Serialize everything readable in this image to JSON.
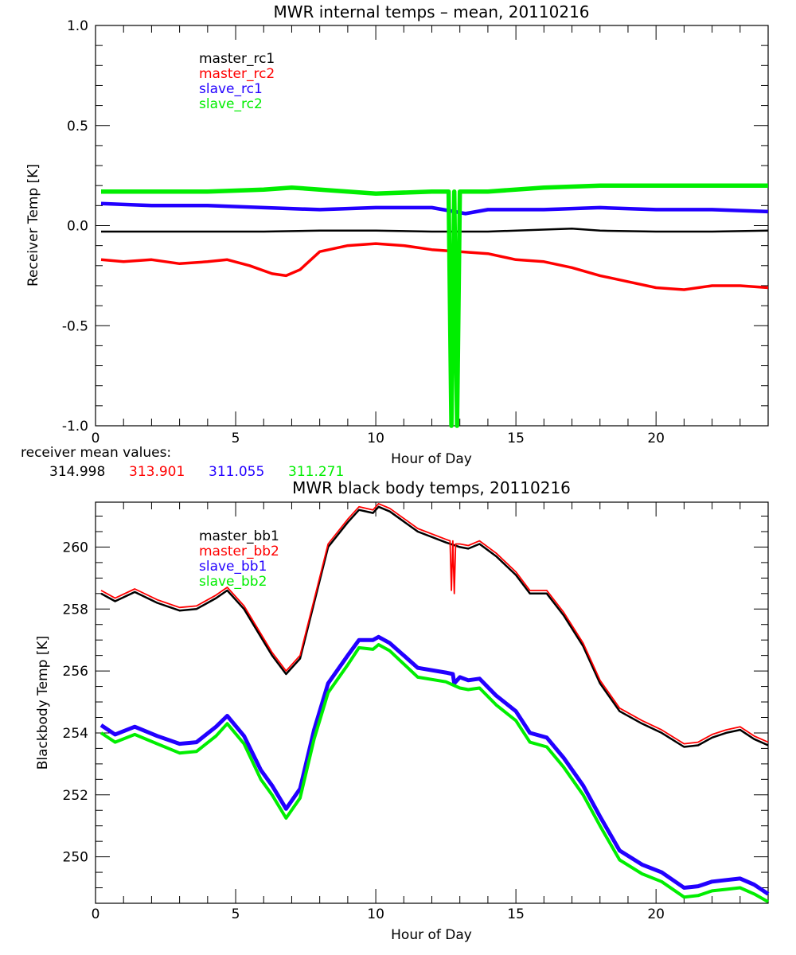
{
  "chart_data": [
    {
      "type": "line",
      "title": "MWR internal temps – mean, 20110216",
      "xlabel": "Hour of Day",
      "ylabel": "Receiver Temp [K]",
      "xlim": [
        0,
        24
      ],
      "ylim": [
        -1.0,
        1.0
      ],
      "xticks": [
        "0",
        "5",
        "10",
        "15",
        "20"
      ],
      "yticks": [
        "1.0",
        "0.5",
        "0.0",
        "-0.5",
        "-1.0"
      ],
      "legend_position": "top-left",
      "series": [
        {
          "name": "master_rc1",
          "color": "#000000",
          "x": [
            0.2,
            2,
            4,
            6,
            8,
            10,
            12,
            14,
            16,
            17,
            18,
            20,
            22,
            24
          ],
          "y": [
            -0.03,
            -0.03,
            -0.03,
            -0.03,
            -0.025,
            -0.025,
            -0.03,
            -0.03,
            -0.02,
            -0.015,
            -0.025,
            -0.03,
            -0.03,
            -0.025
          ]
        },
        {
          "name": "master_rc2",
          "color": "#ff0000",
          "x": [
            0.2,
            1,
            2,
            3,
            4,
            4.7,
            5.5,
            6.3,
            6.8,
            7.3,
            8,
            9,
            10,
            11,
            12,
            13,
            14,
            15,
            16,
            17,
            18,
            19,
            20,
            21,
            22,
            23,
            24
          ],
          "y": [
            -0.17,
            -0.18,
            -0.17,
            -0.19,
            -0.18,
            -0.17,
            -0.2,
            -0.24,
            -0.25,
            -0.22,
            -0.13,
            -0.1,
            -0.09,
            -0.1,
            -0.12,
            -0.13,
            -0.14,
            -0.17,
            -0.18,
            -0.21,
            -0.25,
            -0.28,
            -0.31,
            -0.32,
            -0.3,
            -0.3,
            -0.31
          ]
        },
        {
          "name": "slave_rc1",
          "color": "#2200ff",
          "x": [
            0.2,
            2,
            4,
            6,
            8,
            10,
            12,
            13.2,
            14,
            16,
            18,
            20,
            22,
            24
          ],
          "y": [
            0.11,
            0.1,
            0.1,
            0.09,
            0.08,
            0.09,
            0.09,
            0.06,
            0.08,
            0.08,
            0.09,
            0.08,
            0.08,
            0.07
          ]
        },
        {
          "name": "slave_rc2",
          "color": "#00ee00",
          "x": [
            0.2,
            2,
            4,
            6,
            7,
            8,
            10,
            12,
            12.6,
            12.7,
            12.8,
            12.9,
            13,
            14,
            16,
            18,
            20,
            22,
            24
          ],
          "y": [
            0.17,
            0.17,
            0.17,
            0.18,
            0.19,
            0.18,
            0.16,
            0.17,
            0.17,
            -1.0,
            0.17,
            -1.0,
            0.17,
            0.17,
            0.19,
            0.2,
            0.2,
            0.2,
            0.2
          ]
        }
      ]
    },
    {
      "type": "line",
      "title": "MWR black body temps, 20110216",
      "xlabel": "Hour of Day",
      "ylabel": "Blackbody Temp [K]",
      "xlim": [
        0,
        24
      ],
      "ylim": [
        248.5,
        261.45
      ],
      "xticks": [
        "0",
        "5",
        "10",
        "15",
        "20"
      ],
      "yticks": [
        "250",
        "252",
        "254",
        "256",
        "258",
        "260"
      ],
      "legend_position": "top-left",
      "series": [
        {
          "name": "master_bb1",
          "color": "#000000",
          "x": [
            0.2,
            0.7,
            1.4,
            2.2,
            3.0,
            3.6,
            4.3,
            4.7,
            5.3,
            5.9,
            6.3,
            6.8,
            7.3,
            7.8,
            8.3,
            9.0,
            9.4,
            9.9,
            10.1,
            10.5,
            11.5,
            12.5,
            13.0,
            13.3,
            13.7,
            14.3,
            15.0,
            15.5,
            16.1,
            16.7,
            17.4,
            18.0,
            18.7,
            19.5,
            20.2,
            21.0,
            21.5,
            22.0,
            22.5,
            23.0,
            23.5,
            24.0
          ],
          "y": [
            258.5,
            258.25,
            258.55,
            258.2,
            257.95,
            258.0,
            258.35,
            258.6,
            258.0,
            257.1,
            256.5,
            255.9,
            256.4,
            258.2,
            260.0,
            260.8,
            261.2,
            261.1,
            261.3,
            261.15,
            260.5,
            260.15,
            260.0,
            259.95,
            260.1,
            259.7,
            259.1,
            258.5,
            258.5,
            257.8,
            256.8,
            255.6,
            254.7,
            254.3,
            254.0,
            253.55,
            253.6,
            253.85,
            254.0,
            254.1,
            253.8,
            253.6
          ]
        },
        {
          "name": "master_bb2",
          "color": "#ff0000",
          "x": [
            0.2,
            0.7,
            1.4,
            2.2,
            3.0,
            3.6,
            4.3,
            4.7,
            5.3,
            5.9,
            6.3,
            6.8,
            7.3,
            7.8,
            8.3,
            9.0,
            9.4,
            9.9,
            10.1,
            10.5,
            11.5,
            12.5,
            12.65,
            12.7,
            12.75,
            12.8,
            12.85,
            13.0,
            13.3,
            13.7,
            14.3,
            15.0,
            15.5,
            16.1,
            16.7,
            17.4,
            18.0,
            18.7,
            19.5,
            20.2,
            21.0,
            21.5,
            22.0,
            22.5,
            23.0,
            23.5,
            24.0
          ],
          "y": [
            258.6,
            258.35,
            258.65,
            258.3,
            258.05,
            258.1,
            258.45,
            258.7,
            258.1,
            257.2,
            256.6,
            256.0,
            256.5,
            258.3,
            260.1,
            260.9,
            261.3,
            261.2,
            261.4,
            261.25,
            260.6,
            260.25,
            260.2,
            258.6,
            260.2,
            258.5,
            260.1,
            260.1,
            260.05,
            260.2,
            259.8,
            259.2,
            258.6,
            258.6,
            257.9,
            256.9,
            255.7,
            254.8,
            254.4,
            254.1,
            253.65,
            253.7,
            253.95,
            254.1,
            254.2,
            253.9,
            253.7
          ]
        },
        {
          "name": "slave_bb1",
          "color": "#2200ff",
          "x": [
            0.2,
            0.7,
            1.4,
            2.2,
            3.0,
            3.6,
            4.3,
            4.7,
            5.3,
            5.9,
            6.3,
            6.8,
            7.3,
            7.8,
            8.3,
            9.0,
            9.4,
            9.9,
            10.1,
            10.5,
            11.5,
            12.5,
            12.75,
            12.8,
            13.0,
            13.3,
            13.7,
            14.3,
            15.0,
            15.5,
            16.1,
            16.7,
            17.4,
            18.0,
            18.7,
            19.5,
            20.2,
            21.0,
            21.5,
            22.0,
            22.5,
            23.0,
            23.5,
            24.0
          ],
          "y": [
            254.25,
            253.95,
            254.2,
            253.9,
            253.65,
            253.7,
            254.2,
            254.55,
            253.9,
            252.8,
            252.3,
            251.55,
            252.2,
            254.1,
            255.6,
            256.5,
            257.0,
            257.0,
            257.1,
            256.9,
            256.1,
            255.95,
            255.9,
            255.6,
            255.8,
            255.7,
            255.75,
            255.2,
            254.7,
            254.0,
            253.85,
            253.2,
            252.3,
            251.3,
            250.2,
            249.75,
            249.5,
            249.0,
            249.05,
            249.2,
            249.25,
            249.3,
            249.1,
            248.8
          ]
        },
        {
          "name": "slave_bb2",
          "color": "#00ee00",
          "x": [
            0.2,
            0.7,
            1.4,
            2.2,
            3.0,
            3.6,
            4.3,
            4.7,
            5.3,
            5.9,
            6.3,
            6.8,
            7.3,
            7.8,
            8.3,
            9.0,
            9.4,
            9.9,
            10.1,
            10.5,
            11.5,
            12.5,
            13.0,
            13.3,
            13.7,
            14.3,
            15.0,
            15.5,
            16.1,
            16.7,
            17.4,
            18.0,
            18.7,
            19.5,
            20.2,
            21.0,
            21.5,
            22.0,
            22.5,
            23.0,
            23.5,
            24.0
          ],
          "y": [
            254.0,
            253.7,
            253.95,
            253.65,
            253.35,
            253.4,
            253.9,
            254.3,
            253.65,
            252.5,
            252.0,
            251.25,
            251.9,
            253.8,
            255.3,
            256.2,
            256.75,
            256.7,
            256.85,
            256.65,
            255.8,
            255.65,
            255.45,
            255.4,
            255.45,
            254.9,
            254.4,
            253.7,
            253.55,
            252.9,
            252.0,
            251.0,
            249.9,
            249.45,
            249.2,
            248.7,
            248.75,
            248.9,
            248.95,
            249.0,
            248.8,
            248.55
          ]
        }
      ]
    }
  ],
  "receiver_mean": {
    "label": "receiver mean values:",
    "values": [
      {
        "text": "314.998",
        "color": "#000000"
      },
      {
        "text": "313.901",
        "color": "#ff0000"
      },
      {
        "text": "311.055",
        "color": "#2200ff"
      },
      {
        "text": "311.271",
        "color": "#00ee00"
      }
    ]
  }
}
